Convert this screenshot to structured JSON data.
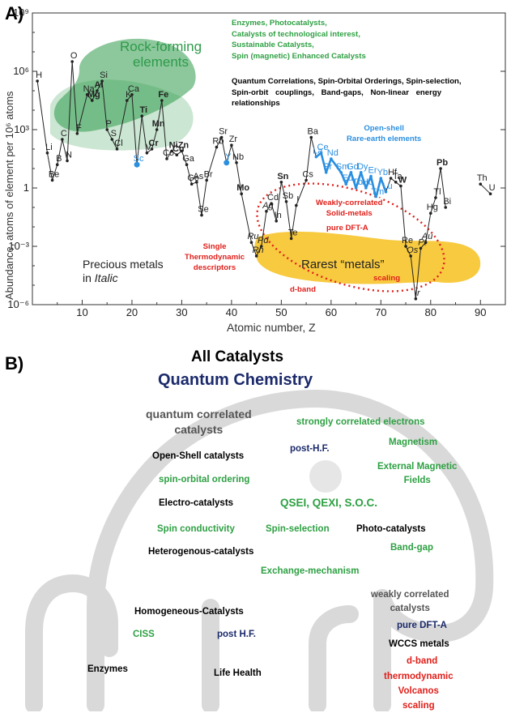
{
  "panel_a": {
    "letter": "A)",
    "y_axis_label": "Abundance, atoms of element per 10⁶ atoms",
    "x_axis_label": "Atomic number, Z",
    "x_ticks": [
      "10",
      "20",
      "30",
      "40",
      "50",
      "60",
      "70",
      "80",
      "90"
    ],
    "y_ticks": [
      "10⁹",
      "10⁶",
      "10³",
      "1",
      "10⁻³",
      "10⁻⁶"
    ],
    "rock_label_1": "Rock-forming",
    "rock_label_2": "elements",
    "green_text": [
      "Enzymes, Photocatalysts,",
      "Catalysts of technological interest,",
      "Sustainable Catalysts,",
      "Spin (magnetic) Enhanced Catalysts"
    ],
    "black_text": [
      "Quantum Correlations, Spin-Orbital Orderings, Spin-selection,",
      "Spin-orbit couplings, Band-gaps, Non-linear energy",
      "relationships"
    ],
    "open_shell_1": "Open-shell",
    "open_shell_2": "Rare-earth elements",
    "weakly_1": "Weakly-correlated",
    "weakly_2": "Solid-metals",
    "pure_dft": "pure DFT-A",
    "single_1": "Single",
    "single_2": "Thermodynamic",
    "single_3": "descriptors",
    "scaling": "scaling",
    "dband": "d-band",
    "rarest": "Rarest “metals”",
    "precious_1": "Precious metals",
    "precious_2a": "in ",
    "precious_2b": "Italic",
    "colors": {
      "green_text": "#2ea043",
      "blue": "#2b8fe0",
      "red": "#e0201b",
      "rock_fill": "#2e9a4a",
      "rare_fill": "#f5b800"
    }
  },
  "chart_data": {
    "type": "line",
    "xlabel": "Atomic number, Z",
    "ylabel": "Abundance, atoms of element per 10^6 atoms",
    "xlim": [
      0,
      95
    ],
    "ylim_log10": [
      -6,
      9
    ],
    "y_scale": "log",
    "points": [
      {
        "z": 1,
        "s": "H",
        "v": 5.5
      },
      {
        "z": 3,
        "s": "Li",
        "v": 1.8
      },
      {
        "z": 4,
        "s": "Be",
        "v": 0.4
      },
      {
        "z": 5,
        "s": "B",
        "v": 1.2
      },
      {
        "z": 6,
        "s": "C",
        "v": 2.5
      },
      {
        "z": 7,
        "s": "N",
        "v": 1.4
      },
      {
        "z": 8,
        "s": "O",
        "v": 6.5
      },
      {
        "z": 9,
        "s": "F",
        "v": 2.8
      },
      {
        "z": 11,
        "s": "Na",
        "v": 4.8
      },
      {
        "z": 12,
        "s": "Mg",
        "v": 4.5
      },
      {
        "z": 13,
        "s": "Al",
        "v": 5.0
      },
      {
        "z": 14,
        "s": "Si",
        "v": 5.5
      },
      {
        "z": 15,
        "s": "P",
        "v": 3.0
      },
      {
        "z": 16,
        "s": "S",
        "v": 2.5
      },
      {
        "z": 17,
        "s": "Cl",
        "v": 2.0
      },
      {
        "z": 19,
        "s": "K",
        "v": 4.5
      },
      {
        "z": 20,
        "s": "Ca",
        "v": 4.8
      },
      {
        "z": 21,
        "s": "Sc",
        "v": 1.2
      },
      {
        "z": 22,
        "s": "Ti",
        "v": 3.7
      },
      {
        "z": 23,
        "s": "V",
        "v": 1.8
      },
      {
        "z": 24,
        "s": "Cr",
        "v": 2.0
      },
      {
        "z": 25,
        "s": "Mn",
        "v": 3.0
      },
      {
        "z": 26,
        "s": "Fe",
        "v": 4.5
      },
      {
        "z": 27,
        "s": "Co",
        "v": 1.5
      },
      {
        "z": 28,
        "s": "Ni",
        "v": 1.9
      },
      {
        "z": 29,
        "s": "Cu",
        "v": 1.7
      },
      {
        "z": 30,
        "s": "Zn",
        "v": 1.9
      },
      {
        "z": 31,
        "s": "Ga",
        "v": 1.2
      },
      {
        "z": 32,
        "s": "Ge",
        "v": 0.2
      },
      {
        "z": 33,
        "s": "As",
        "v": 0.3
      },
      {
        "z": 34,
        "s": "Se",
        "v": -1.4
      },
      {
        "z": 35,
        "s": "Br",
        "v": 0.4
      },
      {
        "z": 37,
        "s": "Rb",
        "v": 2.1
      },
      {
        "z": 38,
        "s": "Sr",
        "v": 2.6
      },
      {
        "z": 39,
        "s": "Y",
        "v": 1.3
      },
      {
        "z": 40,
        "s": "Zr",
        "v": 2.2
      },
      {
        "z": 41,
        "s": "Nb",
        "v": 1.3
      },
      {
        "z": 42,
        "s": "Mo",
        "v": -0.3
      },
      {
        "z": 44,
        "s": "Ru",
        "v": -2.8
      },
      {
        "z": 45,
        "s": "Rh",
        "v": -3.5
      },
      {
        "z": 46,
        "s": "Pd",
        "v": -3.0
      },
      {
        "z": 47,
        "s": "Ag",
        "v": -1.2
      },
      {
        "z": 48,
        "s": "Cd",
        "v": -0.8
      },
      {
        "z": 49,
        "s": "In",
        "v": -1.7
      },
      {
        "z": 50,
        "s": "Sn",
        "v": 0.3
      },
      {
        "z": 51,
        "s": "Sb",
        "v": -0.7
      },
      {
        "z": 52,
        "s": "Te",
        "v": -2.6
      },
      {
        "z": 53,
        "s": "I",
        "v": -0.9
      },
      {
        "z": 55,
        "s": "Cs",
        "v": 0.4
      },
      {
        "z": 56,
        "s": "Ba",
        "v": 2.6
      },
      {
        "z": 57,
        "s": "La",
        "v": 1.6
      },
      {
        "z": 58,
        "s": "Ce",
        "v": 1.8
      },
      {
        "z": 59,
        "s": "Pr",
        "v": 0.8
      },
      {
        "z": 60,
        "s": "Nd",
        "v": 1.5
      },
      {
        "z": 62,
        "s": "Sm",
        "v": 0.8
      },
      {
        "z": 63,
        "s": "Eu",
        "v": 0.2
      },
      {
        "z": 64,
        "s": "Gd",
        "v": 0.8
      },
      {
        "z": 65,
        "s": "Tb",
        "v": 0.0
      },
      {
        "z": 66,
        "s": "Dy",
        "v": 0.8
      },
      {
        "z": 67,
        "s": "Ho",
        "v": 0.0
      },
      {
        "z": 68,
        "s": "Er",
        "v": 0.6
      },
      {
        "z": 69,
        "s": "Tm",
        "v": -0.5
      },
      {
        "z": 70,
        "s": "Yb",
        "v": 0.5
      },
      {
        "z": 71,
        "s": "Lu",
        "v": -0.2
      },
      {
        "z": 72,
        "s": "Hf",
        "v": 0.5
      },
      {
        "z": 73,
        "s": "Ta",
        "v": 0.3
      },
      {
        "z": 74,
        "s": "W",
        "v": 0.1
      },
      {
        "z": 75,
        "s": "Re",
        "v": -3.0
      },
      {
        "z": 76,
        "s": "Os",
        "v": -3.5
      },
      {
        "z": 77,
        "s": "Ir",
        "v": -5.7
      },
      {
        "z": 78,
        "s": "Pt",
        "v": -3.1
      },
      {
        "z": 79,
        "s": "Au",
        "v": -2.8
      },
      {
        "z": 80,
        "s": "Hg",
        "v": -1.3
      },
      {
        "z": 81,
        "s": "Tl",
        "v": -0.5
      },
      {
        "z": 82,
        "s": "Pb",
        "v": 1.0
      },
      {
        "z": 83,
        "s": "Bi",
        "v": -1.0
      },
      {
        "z": 90,
        "s": "Th",
        "v": 0.2
      },
      {
        "z": 92,
        "s": "U",
        "v": -0.3
      }
    ]
  },
  "panel_b": {
    "letter": "B)",
    "title": "All Catalysts",
    "subtitle": "Quantum Chemistry",
    "words": {
      "quantum_correlated_1": "quantum correlated",
      "quantum_correlated_2": "catalysts",
      "strongly": "strongly correlated electrons",
      "post_hf_1": "post-H.F.",
      "magnetism": "Magnetism",
      "open_shell": "Open-Shell catalysts",
      "external_1": "External Magnetic",
      "external_2": "Fields",
      "spin_orbital": "spin-orbital ordering",
      "electro": "Electro-catalysts",
      "qsei": "QSEI, QEXI, S.O.C.",
      "spin_conductivity": "Spin conductivity",
      "spin_selection": "Spin-selection",
      "photo": "Photo-catalysts",
      "band_gap": "Band-gap",
      "heterogenous": "Heterogenous-catalysts",
      "exchange": "Exchange-mechanism",
      "weakly_1": "weakly correlated",
      "weakly_2": "catalysts",
      "homogeneous": "Homogeneous-Catalysts",
      "pure_dft": "pure DFT-A",
      "ciss": "CISS",
      "post_hf_2": "post H.F.",
      "wccs": "WCCS metals",
      "dband": "d-band",
      "enzymes": "Enzymes",
      "life": "Life Health",
      "thermo": "thermodynamic",
      "volcanos": "Volcanos",
      "scaling": "scaling"
    },
    "colors": {
      "green": "#2ea043",
      "navy": "#1b2a6b",
      "red": "#e0201b",
      "elephant": "#d9d9d9"
    }
  }
}
